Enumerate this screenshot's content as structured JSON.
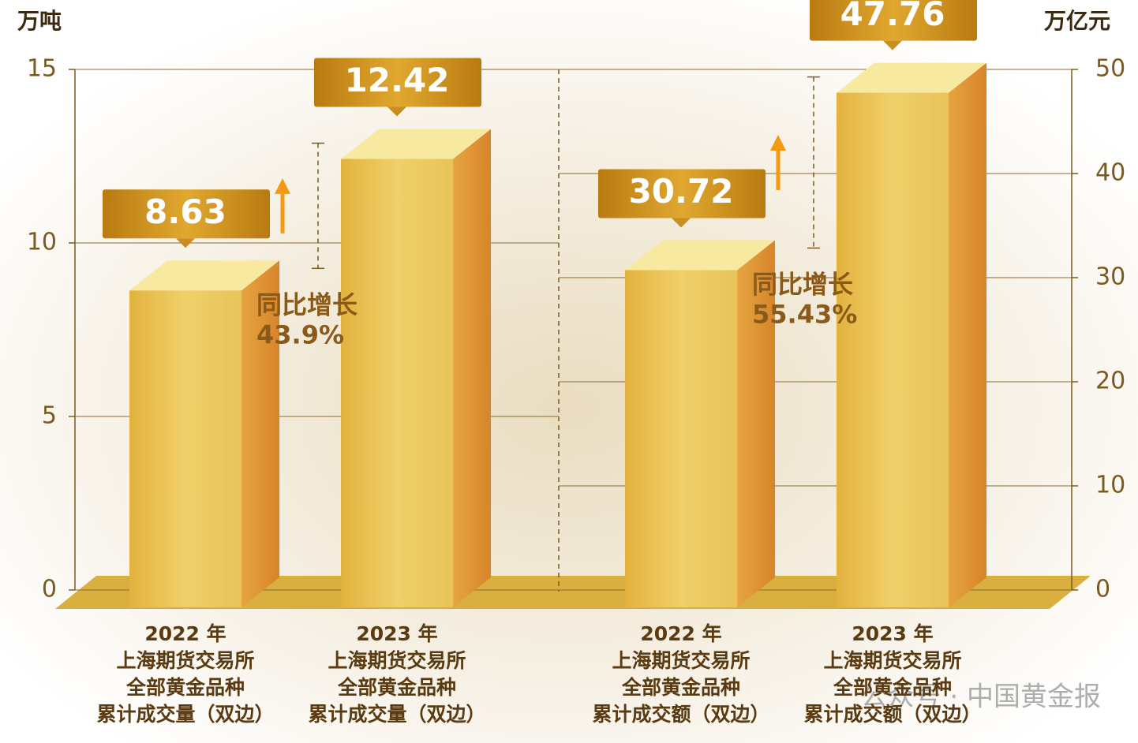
{
  "chart_data": [
    {
      "type": "bar",
      "axis_label": "万吨",
      "axis_side": "left",
      "ylim": [
        0,
        15
      ],
      "yticks": [
        0,
        5,
        10,
        15
      ],
      "categories": [
        [
          "2022 年",
          "上海期货交易所",
          "全部黄金品种",
          "累计成交量（双边）"
        ],
        [
          "2023 年",
          "上海期货交易所",
          "全部黄金品种",
          "累计成交量（双边）"
        ]
      ],
      "values": [
        8.63,
        12.42
      ],
      "color": "#e6b84a",
      "grid": true,
      "annotation": {
        "label": "同比增长",
        "value_label": "43.9%"
      }
    },
    {
      "type": "bar",
      "axis_label": "万亿元",
      "axis_side": "right",
      "ylim": [
        0,
        50
      ],
      "yticks": [
        0,
        10,
        20,
        30,
        40,
        50
      ],
      "categories": [
        [
          "2022 年",
          "上海期货交易所",
          "全部黄金品种",
          "累计成交额（双边）"
        ],
        [
          "2023 年",
          "上海期货交易所",
          "全部黄金品种",
          "累计成交额（双边）"
        ]
      ],
      "values": [
        30.72,
        47.76
      ],
      "color": "#e6b84a",
      "grid": true,
      "annotation": {
        "label": "同比增长",
        "value_label": "55.43%"
      }
    }
  ],
  "watermark": "公众号 · 中国黄金报"
}
